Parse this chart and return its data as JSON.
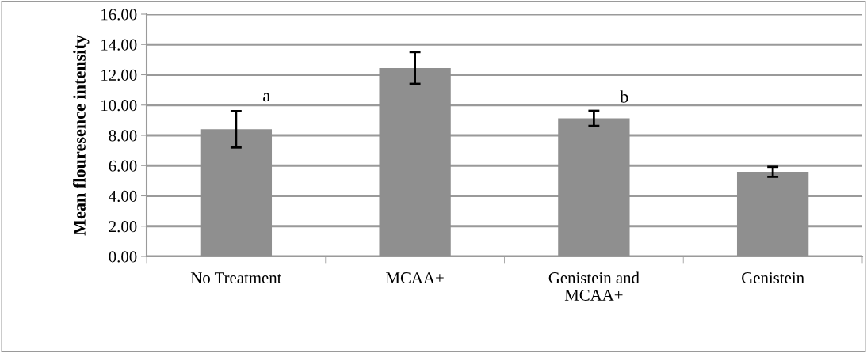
{
  "chart_data": {
    "type": "bar",
    "ylabel": "Mean flouresence intensity",
    "categories": [
      "No Treatment",
      "MCAA+",
      "Genistein and\nMCAA+",
      "Genistein"
    ],
    "values": [
      8.4,
      12.45,
      9.12,
      5.59
    ],
    "errors": [
      1.2,
      1.05,
      0.5,
      0.33
    ],
    "color": "#8f8f8f",
    "ylim": [
      0,
      16
    ],
    "yticks": [
      {
        "value": 0,
        "label": "0.00"
      },
      {
        "value": 2,
        "label": "2.00"
      },
      {
        "value": 4,
        "label": "4.00"
      },
      {
        "value": 6,
        "label": "6.00"
      },
      {
        "value": 8,
        "label": "8.00"
      },
      {
        "value": 10,
        "label": "10.00"
      },
      {
        "value": 12,
        "label": "12.00"
      },
      {
        "value": 14,
        "label": "14.00"
      },
      {
        "value": 16,
        "label": "16.00"
      }
    ],
    "grid": "y",
    "annotations": [
      "a",
      "b"
    ]
  }
}
